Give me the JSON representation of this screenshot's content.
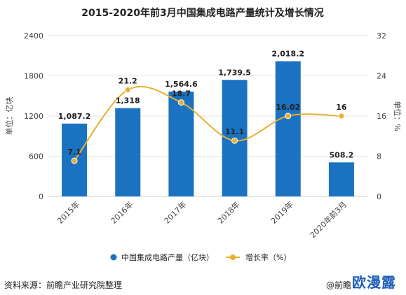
{
  "chart_data": {
    "type": "bar",
    "title": "2015-2020年前3月中国集成电路产量统计及增长情况",
    "categories": [
      "2015年",
      "2016年",
      "2017年",
      "2018年",
      "2019年",
      "2020年前3月"
    ],
    "series": [
      {
        "name": "中国集成电路产量（亿块）",
        "type": "bar",
        "axis": "left",
        "color": "#1b72c0",
        "values": [
          1087.2,
          1318,
          1564.6,
          1739.5,
          2018.2,
          508.2
        ],
        "labels": [
          "1,087.2",
          "1,318",
          "1,564.6",
          "1,739.5",
          "2,018.2",
          "508.2"
        ]
      },
      {
        "name": "增长率（%）",
        "type": "line",
        "axis": "right",
        "color": "#e8b030",
        "values": [
          7.1,
          21.2,
          18.7,
          11.1,
          16.02,
          16
        ],
        "labels": [
          "7.1",
          "21.2",
          "18.7",
          "11.1",
          "16.02",
          "16"
        ]
      }
    ],
    "ylabel": "单位：亿块",
    "y2label": "单位：%",
    "ylim": [
      0,
      2400
    ],
    "y2lim": [
      0,
      32
    ],
    "yticks": [
      "0",
      "600",
      "1200",
      "1800",
      "2400"
    ],
    "y2ticks": [
      "0",
      "8",
      "16",
      "24",
      "32"
    ],
    "grid": true,
    "legend": "bottom"
  },
  "footer": {
    "source": "资料来源：前瞻产业研究院整理",
    "credit": "@前瞻",
    "watermark": "欧漫露"
  }
}
